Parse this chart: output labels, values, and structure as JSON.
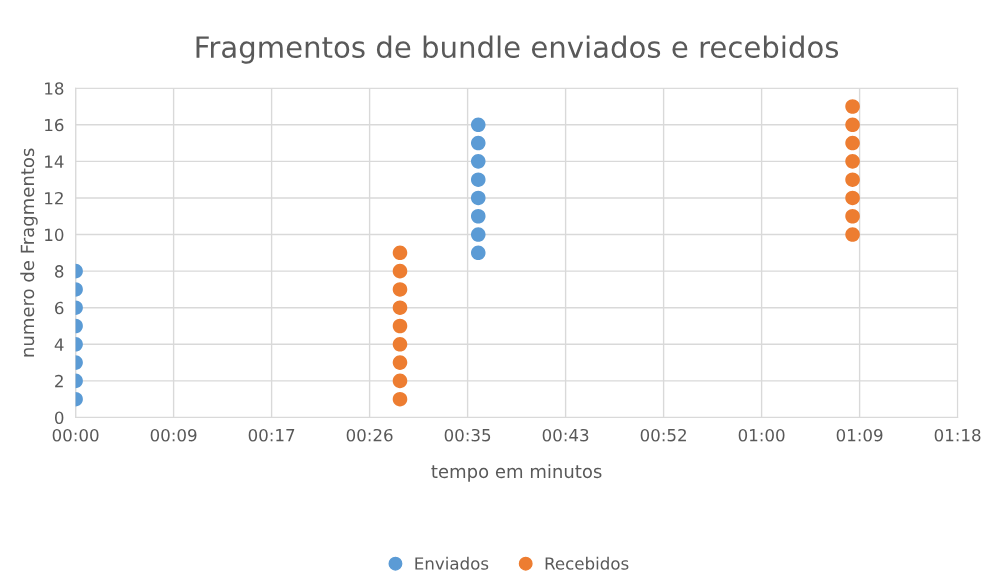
{
  "chart_data": {
    "type": "scatter",
    "title": "Fragmentos de bundle enviados e recebidos",
    "xlabel": "tempo em minutos",
    "ylabel": "numero de Fragmentos",
    "series": [
      {
        "name": "Enviados",
        "color": "#5b9bd5",
        "x": [
          0,
          0,
          0,
          0,
          0,
          0,
          0,
          0,
          35.5,
          35.5,
          35.5,
          35.5,
          35.5,
          35.5,
          35.5,
          35.5
        ],
        "values": [
          1,
          2,
          3,
          4,
          5,
          6,
          7,
          8,
          9,
          10,
          11,
          12,
          13,
          14,
          15,
          16
        ]
      },
      {
        "name": "Recebidos",
        "color": "#ed7d31",
        "x": [
          28.6,
          28.6,
          28.6,
          28.6,
          28.6,
          28.6,
          28.6,
          28.6,
          28.6,
          68.5,
          68.5,
          68.5,
          68.5,
          68.5,
          68.5,
          68.5,
          68.5
        ],
        "values": [
          1,
          2,
          3,
          4,
          5,
          6,
          7,
          8,
          9,
          10,
          11,
          12,
          13,
          14,
          15,
          16,
          17
        ]
      }
    ],
    "xlim": [
      0,
      77.76
    ],
    "xticks": [
      {
        "value": 0,
        "label": "00:00"
      },
      {
        "value": 8.64,
        "label": "00:09"
      },
      {
        "value": 17.28,
        "label": "00:17"
      },
      {
        "value": 25.92,
        "label": "00:26"
      },
      {
        "value": 34.56,
        "label": "00:35"
      },
      {
        "value": 43.2,
        "label": "00:43"
      },
      {
        "value": 51.84,
        "label": "00:52"
      },
      {
        "value": 60.48,
        "label": "01:00"
      },
      {
        "value": 69.12,
        "label": "01:09"
      },
      {
        "value": 77.76,
        "label": "01:18"
      }
    ],
    "ylim": [
      0,
      18
    ],
    "yticks": [
      0,
      2,
      4,
      6,
      8,
      10,
      12,
      14,
      16,
      18
    ],
    "grid": true,
    "legend": "bottom",
    "marker": "circle"
  }
}
